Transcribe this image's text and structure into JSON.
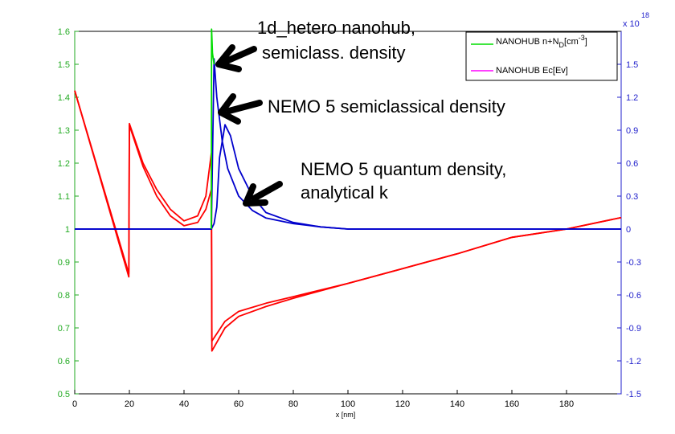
{
  "chart_data": {
    "type": "line",
    "xlabel": "x [nm]",
    "xlim": [
      0,
      200
    ],
    "ylim_left": [
      0.5,
      1.6
    ],
    "ylim_right": [
      -1.5,
      1.8
    ],
    "right_axis_exponent": "x 10",
    "right_axis_exponent_power": "18",
    "x_ticks": [
      "0",
      "20",
      "40",
      "60",
      "80",
      "100",
      "120",
      "140",
      "160",
      "180"
    ],
    "y_left_ticks": [
      "0.5",
      "0.6",
      "0.7",
      "0.8",
      "0.9",
      "1",
      "1.1",
      "1.2",
      "1.3",
      "1.4",
      "1.5",
      "1.6"
    ],
    "y_right_ticks": [
      "-1.5",
      "-1.2",
      "-0.9",
      "-0.6",
      "-0.3",
      "0",
      "0.3",
      "0.6",
      "0.9",
      "1.2",
      "1.5"
    ],
    "legend": {
      "position": "top-right",
      "entries": [
        {
          "label": "NANOHUB n+N",
          "sub": "D",
          "suffix": "[cm",
          "sup": "-3",
          "end": "]",
          "color": "#00dd00"
        },
        {
          "label": "NANOHUB Ec[Ev]",
          "sub": "",
          "suffix": "",
          "sup": "",
          "end": "",
          "color": "#ff00ff"
        }
      ]
    },
    "colors": {
      "left_axis": "#22aa22",
      "right_axis": "#2222cc",
      "energy": "#ff0000",
      "density": "#0000cc",
      "nanohub_density": "#00dd00"
    },
    "series": [
      {
        "axis": "left",
        "color": "#ff0000",
        "points": [
          [
            0,
            1.42
          ],
          [
            19.8,
            0.855
          ],
          [
            20,
            1.32
          ],
          [
            25,
            1.2
          ],
          [
            30,
            1.12
          ],
          [
            35,
            1.06
          ],
          [
            40,
            1.025
          ],
          [
            45,
            1.04
          ],
          [
            48,
            1.1
          ],
          [
            50,
            1.23
          ],
          [
            50.2,
            0.63
          ],
          [
            55,
            0.7
          ],
          [
            60,
            0.735
          ],
          [
            70,
            0.765
          ],
          [
            80,
            0.79
          ],
          [
            100,
            0.835
          ],
          [
            120,
            0.88
          ],
          [
            140,
            0.925
          ],
          [
            160,
            0.975
          ],
          [
            180,
            1.0
          ],
          [
            200,
            1.035
          ]
        ]
      },
      {
        "axis": "left",
        "color": "#ff0000",
        "points": [
          [
            0,
            1.42
          ],
          [
            19.8,
            0.865
          ],
          [
            20,
            1.315
          ],
          [
            25,
            1.19
          ],
          [
            30,
            1.1
          ],
          [
            35,
            1.04
          ],
          [
            40,
            1.01
          ],
          [
            45,
            1.02
          ],
          [
            48,
            1.06
          ],
          [
            50,
            1.12
          ],
          [
            50.2,
            0.66
          ],
          [
            55,
            0.72
          ],
          [
            60,
            0.75
          ],
          [
            70,
            0.775
          ],
          [
            80,
            0.795
          ],
          [
            100,
            0.835
          ],
          [
            120,
            0.88
          ],
          [
            140,
            0.925
          ],
          [
            160,
            0.975
          ],
          [
            180,
            1.0
          ],
          [
            200,
            1.035
          ]
        ]
      },
      {
        "axis": "right",
        "color": "#0000cc",
        "points": [
          [
            0,
            0
          ],
          [
            49.5,
            0
          ],
          [
            50,
            0
          ],
          [
            51,
            1.55
          ],
          [
            52,
            1.2
          ],
          [
            54,
            0.8
          ],
          [
            56,
            0.55
          ],
          [
            60,
            0.3
          ],
          [
            65,
            0.17
          ],
          [
            70,
            0.1
          ],
          [
            80,
            0.05
          ],
          [
            90,
            0.02
          ],
          [
            100,
            0
          ],
          [
            200,
            0
          ]
        ]
      },
      {
        "axis": "right",
        "color": "#0000cc",
        "points": [
          [
            0,
            0
          ],
          [
            49.5,
            0
          ],
          [
            50,
            0
          ],
          [
            51,
            0.05
          ],
          [
            52,
            0.2
          ],
          [
            53,
            0.65
          ],
          [
            55,
            0.95
          ],
          [
            57,
            0.85
          ],
          [
            60,
            0.55
          ],
          [
            65,
            0.3
          ],
          [
            70,
            0.15
          ],
          [
            80,
            0.06
          ],
          [
            90,
            0.02
          ],
          [
            100,
            0
          ],
          [
            200,
            0
          ]
        ]
      },
      {
        "axis": "right",
        "color": "#00dd00",
        "points": [
          [
            50,
            0
          ],
          [
            50.1,
            1.82
          ],
          [
            50.4,
            1.6
          ],
          [
            51,
            1.5
          ]
        ]
      }
    ],
    "annotations": [
      {
        "lines": [
          "1d_hetero nanohub,",
          "semiclass. density"
        ]
      },
      {
        "lines": [
          "NEMO 5 semiclassical density"
        ]
      },
      {
        "lines": [
          "NEMO 5 quantum density,",
          "analytical k"
        ]
      }
    ]
  }
}
